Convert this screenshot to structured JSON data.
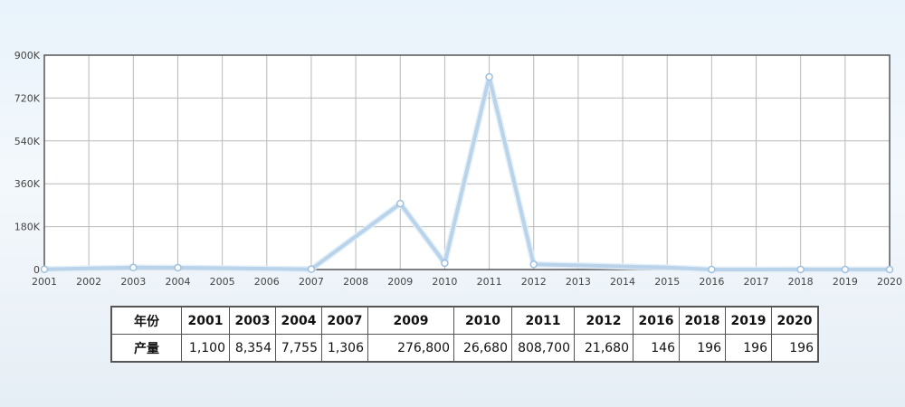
{
  "chart_data": {
    "type": "line",
    "x": [
      "2001",
      "2002",
      "2003",
      "2004",
      "2005",
      "2006",
      "2007",
      "2008",
      "2009",
      "2010",
      "2011",
      "2012",
      "2013",
      "2014",
      "2015",
      "2016",
      "2017",
      "2018",
      "2019",
      "2020"
    ],
    "series": [
      {
        "values": [
          1100,
          4700,
          8354,
          7755,
          5600,
          3500,
          1306,
          139000,
          276800,
          26680,
          808700,
          21680,
          17300,
          13000,
          8700,
          146,
          170,
          196,
          196,
          196
        ],
        "color": "#b8d3ea"
      }
    ],
    "yticks": [
      "0",
      "180K",
      "360K",
      "540K",
      "720K",
      "900K"
    ],
    "ylim": [
      0,
      900000
    ],
    "grid": true,
    "marker_years": [
      "2001",
      "2003",
      "2004",
      "2007",
      "2009",
      "2010",
      "2011",
      "2012",
      "2016",
      "2018",
      "2019",
      "2020"
    ]
  },
  "table": {
    "header_label": "年份",
    "value_label": "产量",
    "years": [
      "2001",
      "2003",
      "2004",
      "2007",
      "2009",
      "2010",
      "2011",
      "2012",
      "2016",
      "2018",
      "2019",
      "2020"
    ],
    "values": [
      "1,100",
      "8,354",
      "7,755",
      "1,306",
      "276,800",
      "26,680",
      "808,700",
      "21,680",
      "146",
      "196",
      "196",
      "196"
    ]
  }
}
